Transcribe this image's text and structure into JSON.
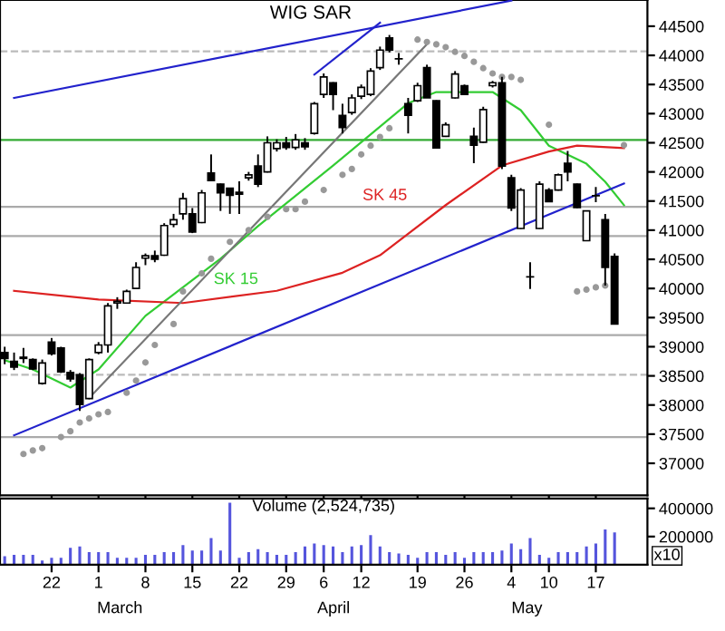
{
  "chart_data": [
    {
      "type": "candlestick",
      "title": "WIG SAR",
      "categories": [
        null,
        null,
        null,
        null,
        null,
        "22",
        null,
        null,
        null,
        null,
        "1",
        null,
        null,
        null,
        null,
        "8",
        null,
        null,
        null,
        null,
        "15",
        null,
        null,
        null,
        null,
        "22",
        null,
        null,
        null,
        null,
        "29",
        null,
        null,
        null,
        "6",
        null,
        null,
        null,
        "12",
        null,
        null,
        null,
        null,
        null,
        "19",
        null,
        null,
        null,
        null,
        "26",
        null,
        null,
        null,
        null,
        "4",
        null,
        null,
        null,
        "10",
        null,
        null,
        null,
        null,
        "17",
        null,
        null,
        null
      ],
      "ohlc": [
        [
          38900,
          39000,
          38700,
          38800
        ],
        [
          38750,
          38900,
          38600,
          38650
        ],
        [
          38800,
          38980,
          38720,
          38820
        ],
        [
          38780,
          38800,
          38600,
          38620
        ],
        [
          38370,
          38780,
          38350,
          38720
        ],
        [
          39080,
          39150,
          38850,
          38880
        ],
        [
          38980,
          39000,
          38550,
          38570
        ],
        [
          38560,
          38600,
          38400,
          38450
        ],
        [
          38520,
          38550,
          37900,
          38010
        ],
        [
          38110,
          38800,
          38100,
          38780
        ],
        [
          38900,
          39080,
          38870,
          39030
        ],
        [
          39030,
          39750,
          38900,
          39700
        ],
        [
          39750,
          39850,
          39650,
          39780
        ],
        [
          39750,
          39980,
          39740,
          39950
        ],
        [
          40000,
          40450,
          39990,
          40360
        ],
        [
          40520,
          40600,
          40400,
          40560
        ],
        [
          40560,
          40650,
          40450,
          40500
        ],
        [
          40570,
          41120,
          40560,
          41080
        ],
        [
          41100,
          41280,
          41050,
          41180
        ],
        [
          41280,
          41640,
          41180,
          41540
        ],
        [
          41280,
          41380,
          40950,
          40970
        ],
        [
          41130,
          41690,
          41120,
          41640
        ],
        [
          41980,
          42300,
          41840,
          41850
        ],
        [
          41790,
          41800,
          41330,
          41640
        ],
        [
          41720,
          41720,
          41280,
          41600
        ],
        [
          41650,
          41840,
          41280,
          41620
        ],
        [
          41900,
          42000,
          41850,
          41950
        ],
        [
          42100,
          42300,
          41740,
          41790
        ],
        [
          42000,
          42610,
          41990,
          42500
        ],
        [
          42400,
          42560,
          42350,
          42500
        ],
        [
          42500,
          42600,
          42380,
          42420
        ],
        [
          42420,
          42650,
          42380,
          42550
        ],
        [
          42500,
          42580,
          42380,
          42430
        ],
        [
          42660,
          43200,
          42640,
          43170
        ],
        [
          43330,
          43690,
          43270,
          43630
        ],
        [
          43530,
          43540,
          43060,
          43330
        ],
        [
          42970,
          43170,
          42660,
          42760
        ],
        [
          43020,
          43330,
          42980,
          43270
        ],
        [
          43300,
          43500,
          43250,
          43450
        ],
        [
          43330,
          43780,
          43300,
          43730
        ],
        [
          43790,
          44150,
          43750,
          44090
        ],
        [
          44300,
          44350,
          44050,
          44090
        ],
        [
          43940,
          44040,
          43840,
          43940
        ],
        [
          43170,
          43270,
          42660,
          42970
        ],
        [
          43220,
          43530,
          43200,
          43480
        ],
        [
          43790,
          43840,
          43270,
          43270
        ],
        [
          43220,
          43230,
          42400,
          42410
        ],
        [
          42610,
          42850,
          42600,
          42810
        ],
        [
          43270,
          43730,
          43260,
          43680
        ],
        [
          43480,
          43500,
          43320,
          43330
        ],
        [
          42610,
          42760,
          42150,
          42460
        ],
        [
          42510,
          43120,
          42500,
          43070
        ],
        [
          43480,
          43560,
          43450,
          43530
        ],
        [
          43530,
          43630,
          42050,
          42100
        ],
        [
          41900,
          41950,
          41330,
          41380
        ],
        [
          41030,
          41720,
          41020,
          41690
        ],
        [
          40200,
          40450,
          39990,
          40200
        ],
        [
          41030,
          41840,
          41020,
          41790
        ],
        [
          41690,
          41720,
          41480,
          41490
        ],
        [
          41690,
          41970,
          41680,
          41950
        ],
        [
          42150,
          42360,
          41840,
          42000
        ],
        [
          41790,
          41800,
          41380,
          41390
        ],
        [
          40820,
          41340,
          40810,
          41330
        ],
        [
          41590,
          41740,
          41480,
          41590
        ],
        [
          41180,
          41280,
          40050,
          40360
        ],
        [
          40550,
          40600,
          39380,
          39390
        ],
        null
      ],
      "series": [
        {
          "type": "line",
          "color": "#33cc33",
          "marker": "none",
          "values": [
            38770,
            null,
            null,
            38610,
            null,
            null,
            null,
            38300,
            null,
            null,
            38610,
            null,
            null,
            null,
            null,
            39530,
            null,
            null,
            null,
            null,
            null,
            null,
            null,
            40510,
            null,
            null,
            null,
            41070,
            null,
            null,
            null,
            null,
            null,
            null,
            null,
            42110,
            null,
            null,
            42510,
            null,
            null,
            null,
            null,
            43180,
            null,
            null,
            43370,
            null,
            null,
            null,
            null,
            null,
            43370,
            null,
            null,
            43060,
            null,
            null,
            42450,
            null,
            null,
            null,
            42140,
            null,
            41830,
            null,
            41430
          ]
        },
        {
          "type": "line",
          "color": "#dd2222",
          "marker": "none",
          "values": [
            null,
            39960,
            null,
            null,
            null,
            null,
            null,
            null,
            null,
            null,
            39810,
            null,
            null,
            null,
            null,
            null,
            null,
            null,
            null,
            39750,
            null,
            null,
            null,
            null,
            null,
            null,
            null,
            null,
            null,
            39960,
            null,
            null,
            null,
            null,
            null,
            null,
            40270,
            null,
            null,
            null,
            40570,
            null,
            null,
            null,
            null,
            null,
            null,
            41430,
            null,
            null,
            null,
            null,
            null,
            42110,
            null,
            null,
            null,
            null,
            42350,
            null,
            null,
            42450,
            null,
            null,
            null,
            null,
            42410
          ]
        },
        {
          "type": "line",
          "color": "#2222cc",
          "marker": "none",
          "values": [
            null,
            43270,
            null,
            null,
            null,
            null,
            null,
            null,
            null,
            null,
            null,
            null,
            null,
            null,
            null,
            null,
            null,
            null,
            null,
            null,
            null,
            null,
            null,
            null,
            null,
            null,
            null,
            null,
            null,
            null,
            null,
            null,
            null,
            null,
            null,
            null,
            null,
            null,
            null,
            null,
            null,
            null,
            null,
            null,
            null,
            null,
            null,
            null,
            null,
            null,
            null,
            null,
            null,
            null,
            44940,
            null,
            null,
            null,
            null,
            null,
            null,
            null,
            null,
            null,
            null,
            null,
            null
          ]
        },
        {
          "type": "line",
          "color": "#2222cc",
          "marker": "none",
          "values": [
            null,
            null,
            null,
            null,
            null,
            null,
            null,
            null,
            null,
            null,
            null,
            null,
            null,
            null,
            null,
            null,
            null,
            null,
            null,
            null,
            null,
            null,
            null,
            null,
            null,
            null,
            null,
            null,
            null,
            null,
            null,
            null,
            null,
            43670,
            null,
            null,
            null,
            null,
            null,
            null,
            44560,
            null,
            null,
            null,
            null,
            null,
            null,
            null,
            null,
            null,
            null,
            null,
            null,
            null,
            null,
            null,
            null,
            null,
            null,
            null,
            null,
            null,
            null,
            null,
            null,
            null,
            null
          ]
        },
        {
          "type": "line",
          "color": "#2222cc",
          "marker": "none",
          "values": [
            null,
            37480,
            null,
            null,
            null,
            null,
            null,
            null,
            null,
            null,
            null,
            null,
            null,
            null,
            null,
            null,
            null,
            null,
            null,
            null,
            null,
            null,
            null,
            null,
            null,
            null,
            null,
            null,
            null,
            null,
            null,
            null,
            null,
            null,
            null,
            null,
            null,
            null,
            null,
            null,
            null,
            null,
            null,
            null,
            null,
            null,
            null,
            null,
            null,
            null,
            null,
            null,
            null,
            null,
            null,
            null,
            null,
            null,
            null,
            null,
            null,
            null,
            null,
            null,
            null,
            null,
            41800
          ]
        },
        {
          "type": "line",
          "color": "#777777",
          "marker": "none",
          "values": [
            null,
            null,
            null,
            null,
            null,
            null,
            null,
            null,
            null,
            38120,
            null,
            null,
            null,
            null,
            null,
            null,
            null,
            null,
            null,
            null,
            null,
            null,
            null,
            null,
            null,
            null,
            null,
            null,
            null,
            null,
            null,
            null,
            null,
            null,
            null,
            null,
            null,
            null,
            null,
            null,
            null,
            null,
            null,
            null,
            null,
            44190,
            null,
            null,
            null,
            null,
            null,
            null,
            null,
            null,
            null,
            null,
            null,
            null,
            null,
            null,
            null,
            null,
            null,
            null,
            null,
            null,
            null
          ]
        },
        {
          "type": "scatter",
          "color": "#999999",
          "marker": "circle",
          "values": [
            null,
            null,
            37160,
            37220,
            37260,
            null,
            37450,
            37550,
            37700,
            37770,
            37840,
            37880,
            null,
            38210,
            38420,
            38730,
            39030,
            null,
            39390,
            39950,
            null,
            40260,
            40510,
            null,
            40800,
            null,
            41000,
            null,
            41230,
            null,
            41360,
            41360,
            41490,
            null,
            41690,
            null,
            41950,
            42050,
            42300,
            42450,
            42600,
            42750,
            null,
            null,
            44270,
            44230,
            44190,
            44140,
            44060,
            43990,
            43890,
            43780,
            43690,
            43630,
            43630,
            43580,
            null,
            null,
            42810,
            null,
            null,
            39950,
            39980,
            40020,
            40050,
            null,
            42460
          ]
        }
      ],
      "ylim": [
        36450,
        44950
      ],
      "yticks": [
        37000,
        37500,
        38000,
        38500,
        39000,
        39500,
        40000,
        40500,
        41000,
        41500,
        42000,
        42500,
        43000,
        43500,
        44000,
        44500
      ],
      "tick_labels": "y",
      "grid": false,
      "legend": false,
      "ref_lines": [
        {
          "axis": "y",
          "value": 42550,
          "color": "#33aa33",
          "line_style": "solid"
        },
        {
          "axis": "y",
          "value": 41400,
          "color": "#aaaaaa",
          "line_style": "solid"
        },
        {
          "axis": "y",
          "value": 40900,
          "color": "#aaaaaa",
          "line_style": "solid"
        },
        {
          "axis": "y",
          "value": 39200,
          "color": "#aaaaaa",
          "line_style": "solid"
        },
        {
          "axis": "y",
          "value": 37450,
          "color": "#aaaaaa",
          "line_style": "solid"
        },
        {
          "axis": "y",
          "value": 44070,
          "color": "#bbbbbb",
          "line_style": "dashed"
        },
        {
          "axis": "y",
          "value": 38520,
          "color": "#bbbbbb",
          "line_style": "dashed"
        }
      ],
      "annotations": [
        "SK 15",
        "SK 45"
      ]
    },
    {
      "type": "bar",
      "title": "Volume (2,524,735)",
      "categories": [
        null,
        null,
        null,
        null,
        null,
        "22",
        null,
        null,
        null,
        null,
        "1",
        null,
        null,
        null,
        null,
        "8",
        null,
        null,
        null,
        null,
        "15",
        null,
        null,
        null,
        null,
        "22",
        null,
        null,
        null,
        null,
        "29",
        null,
        null,
        null,
        "6",
        null,
        null,
        null,
        "12",
        null,
        null,
        null,
        null,
        null,
        "19",
        null,
        null,
        null,
        null,
        "26",
        null,
        null,
        null,
        null,
        "4",
        null,
        null,
        null,
        "10",
        null,
        null,
        null,
        null,
        "17",
        null,
        null,
        null
      ],
      "values": [
        60000,
        70000,
        70000,
        70000,
        30000,
        50000,
        50000,
        120000,
        130000,
        90000,
        90000,
        90000,
        50000,
        50000,
        50000,
        70000,
        70000,
        90000,
        90000,
        140000,
        100000,
        100000,
        190000,
        100000,
        440000,
        50000,
        90000,
        110000,
        90000,
        70000,
        70000,
        90000,
        130000,
        150000,
        140000,
        130000,
        90000,
        130000,
        140000,
        210000,
        130000,
        90000,
        80000,
        70000,
        50000,
        90000,
        90000,
        70000,
        90000,
        50000,
        90000,
        90000,
        90000,
        100000,
        150000,
        110000,
        190000,
        70000,
        50000,
        90000,
        90000,
        90000,
        130000,
        150000,
        250000,
        230000,
        null
      ],
      "color": "#5555dd",
      "ylim": [
        0,
        470000
      ],
      "yticks": [
        200000,
        400000
      ],
      "grid": false,
      "legend": false,
      "annotations": [
        "x10",
        "March",
        "April",
        "May"
      ]
    }
  ]
}
